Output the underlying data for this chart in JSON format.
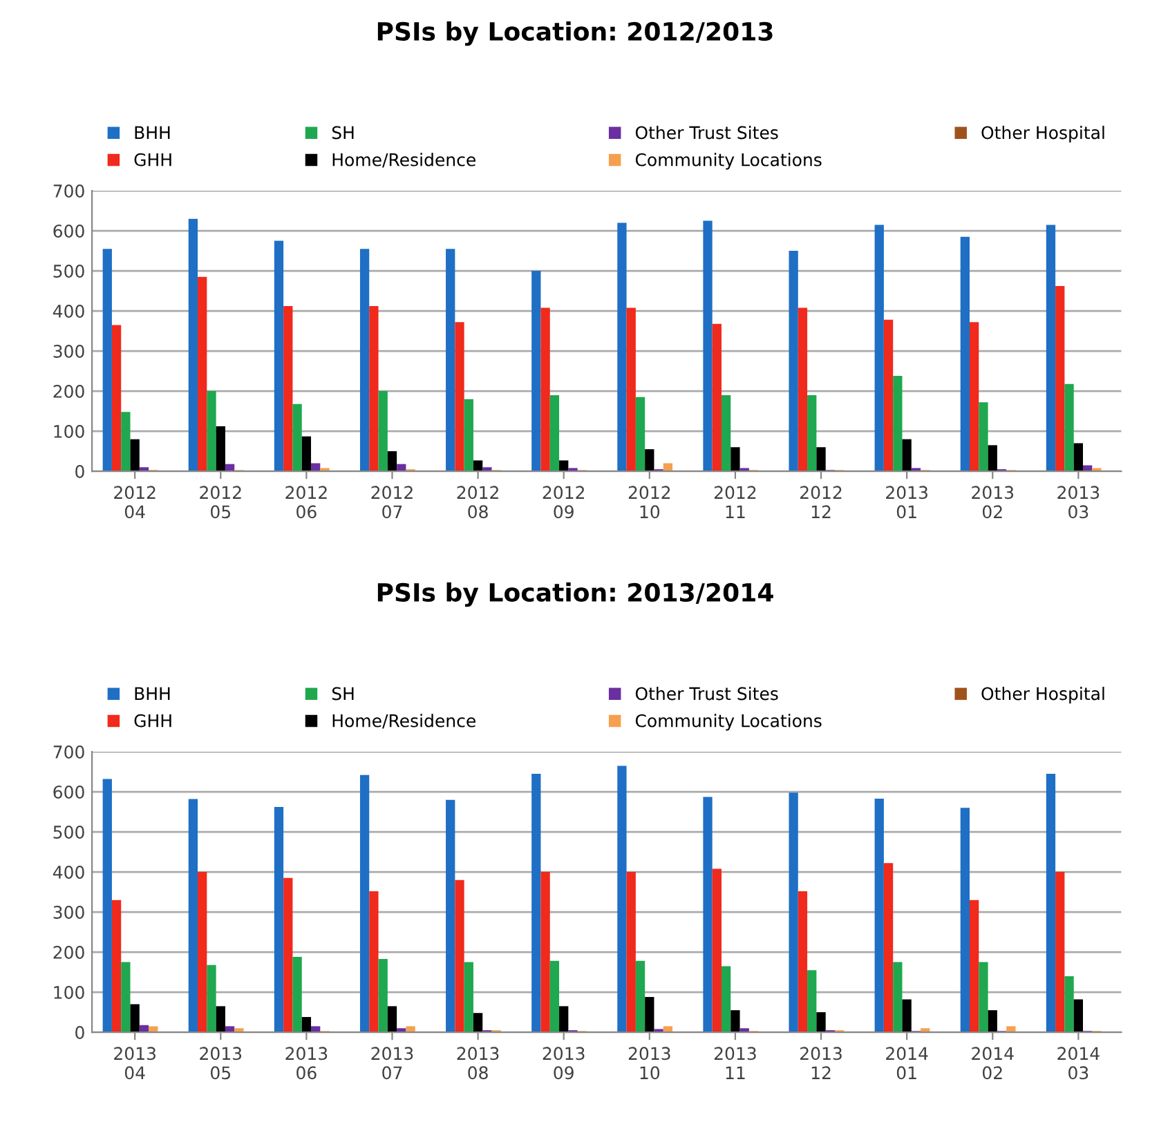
{
  "chart_data": [
    {
      "type": "bar",
      "title": "PSIs by Location: 2012/2013",
      "categories": [
        "2012\n04",
        "2012\n05",
        "2012\n06",
        "2012\n07",
        "2012\n08",
        "2012\n09",
        "2012\n10",
        "2012\n11",
        "2012\n12",
        "2013\n01",
        "2013\n02",
        "2013\n03"
      ],
      "series": [
        {
          "name": "BHH",
          "color": "#1f6fc5",
          "values": [
            555,
            630,
            575,
            555,
            555,
            500,
            620,
            625,
            550,
            615,
            585,
            615
          ]
        },
        {
          "name": "GHH",
          "color": "#f02a1c",
          "values": [
            365,
            485,
            412,
            412,
            372,
            408,
            408,
            368,
            408,
            378,
            372,
            462
          ]
        },
        {
          "name": "SH",
          "color": "#1fa84f",
          "values": [
            148,
            200,
            168,
            200,
            180,
            190,
            185,
            190,
            190,
            238,
            172,
            218
          ]
        },
        {
          "name": "Home/Residence",
          "color": "#000000",
          "values": [
            80,
            112,
            87,
            50,
            27,
            27,
            55,
            60,
            60,
            80,
            65,
            70
          ]
        },
        {
          "name": "Other Trust Sites",
          "color": "#6a2fa0",
          "values": [
            10,
            18,
            20,
            18,
            10,
            8,
            5,
            8,
            3,
            8,
            5,
            15
          ]
        },
        {
          "name": "Community Locations",
          "color": "#f5a050",
          "values": [
            3,
            3,
            8,
            5,
            3,
            3,
            20,
            3,
            3,
            3,
            3,
            8
          ]
        },
        {
          "name": "Other Hospital",
          "color": "#a0521c",
          "values": [
            null,
            null,
            null,
            null,
            null,
            null,
            null,
            null,
            null,
            null,
            null,
            null
          ]
        }
      ],
      "ylim": [
        0,
        700
      ],
      "yticks": [
        0,
        100,
        200,
        300,
        400,
        500,
        600,
        700
      ],
      "grid": "y",
      "legend": "top"
    },
    {
      "type": "bar",
      "title": "PSIs by Location: 2013/2014",
      "categories": [
        "2013\n04",
        "2013\n05",
        "2013\n06",
        "2013\n07",
        "2013\n08",
        "2013\n09",
        "2013\n10",
        "2013\n11",
        "2013\n12",
        "2014\n01",
        "2014\n02",
        "2014\n03"
      ],
      "series": [
        {
          "name": "BHH",
          "color": "#1f6fc5",
          "values": [
            632,
            582,
            562,
            642,
            580,
            645,
            665,
            587,
            598,
            583,
            560,
            645
          ]
        },
        {
          "name": "GHH",
          "color": "#f02a1c",
          "values": [
            330,
            400,
            385,
            352,
            380,
            400,
            400,
            408,
            352,
            422,
            330,
            400
          ]
        },
        {
          "name": "SH",
          "color": "#1fa84f",
          "values": [
            175,
            168,
            188,
            183,
            175,
            178,
            178,
            165,
            155,
            175,
            175,
            140
          ]
        },
        {
          "name": "Home/Residence",
          "color": "#000000",
          "values": [
            70,
            65,
            38,
            65,
            48,
            65,
            88,
            55,
            50,
            82,
            55,
            82
          ]
        },
        {
          "name": "Other Trust Sites",
          "color": "#6a2fa0",
          "values": [
            18,
            15,
            15,
            10,
            5,
            5,
            8,
            10,
            5,
            3,
            3,
            3
          ]
        },
        {
          "name": "Community Locations",
          "color": "#f5a050",
          "values": [
            15,
            10,
            3,
            15,
            5,
            3,
            15,
            3,
            5,
            10,
            15,
            3
          ]
        },
        {
          "name": "Other Hospital",
          "color": "#a0521c",
          "values": [
            null,
            null,
            null,
            null,
            null,
            null,
            null,
            null,
            null,
            null,
            null,
            null
          ]
        }
      ],
      "ylim": [
        0,
        700
      ],
      "yticks": [
        0,
        100,
        200,
        300,
        400,
        500,
        600,
        700
      ],
      "grid": "y",
      "legend": "top"
    }
  ]
}
